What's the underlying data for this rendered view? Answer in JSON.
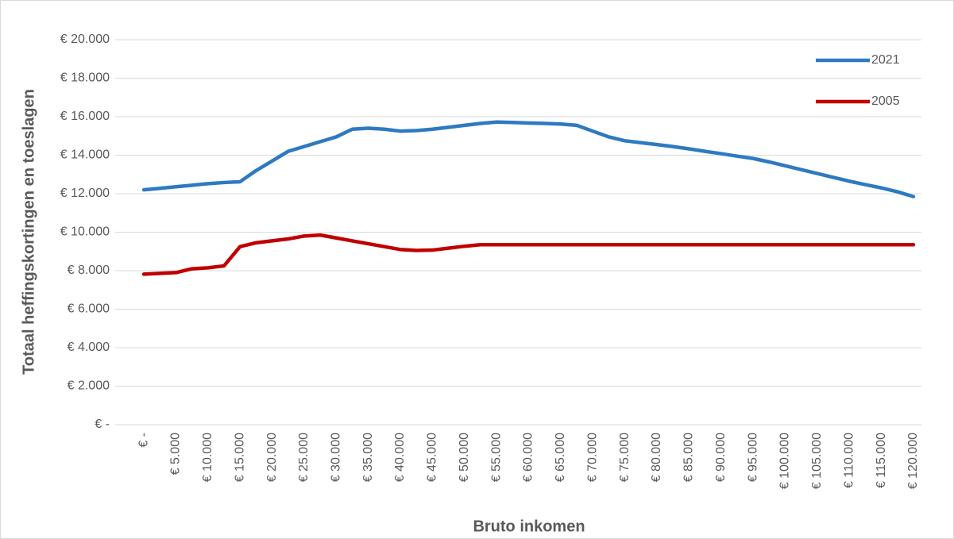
{
  "chart_data": {
    "type": "line",
    "y_label": "Totaal heffingskortingen en toeslagen",
    "x_label": "Bruto inkomen",
    "categories": [
      "€ -",
      null,
      "€ 5.000",
      null,
      "€ 10.000",
      null,
      "€ 15.000",
      null,
      "€ 20.000",
      null,
      "€ 25.000",
      null,
      "€ 30.000",
      null,
      "€ 35.000",
      null,
      "€ 40.000",
      null,
      "€ 45.000",
      null,
      "€ 50.000",
      null,
      "€ 55.000",
      null,
      "€ 60.000",
      null,
      "€ 65.000",
      null,
      "€ 70.000",
      null,
      "€ 75.000",
      null,
      "€ 80.000",
      null,
      "€ 85.000",
      null,
      "€ 90.000",
      null,
      "€ 95.000",
      null,
      "€ 100.000",
      null,
      "€ 105.000",
      null,
      "€ 110.000",
      null,
      "€ 115.000",
      null,
      "€ 120.000"
    ],
    "series": [
      {
        "name": "2021",
        "color": "#2e7ac1",
        "values": [
          12200,
          12280,
          12360,
          12440,
          12520,
          12580,
          12620,
          13200,
          13700,
          14200,
          14450,
          14700,
          14950,
          15350,
          15400,
          15350,
          15250,
          15280,
          15350,
          15450,
          15550,
          15650,
          15720,
          15700,
          15670,
          15650,
          15620,
          15550,
          15250,
          14950,
          14750,
          14650,
          14550,
          14450,
          14330,
          14200,
          14080,
          13950,
          13830,
          13650,
          13450,
          13250,
          13050,
          12850,
          12650,
          12470,
          12300,
          12100,
          11850
        ]
      },
      {
        "name": "2005",
        "color": "#c00000",
        "values": [
          7820,
          7860,
          7900,
          8100,
          8150,
          8250,
          9250,
          9450,
          9550,
          9650,
          9800,
          9850,
          9700,
          9550,
          9400,
          9250,
          9100,
          9050,
          9070,
          9170,
          9270,
          9350,
          9350,
          9350,
          9350,
          9350,
          9350,
          9350,
          9350,
          9350,
          9350,
          9350,
          9350,
          9350,
          9350,
          9350,
          9350,
          9350,
          9350,
          9350,
          9350,
          9350,
          9350,
          9350,
          9350,
          9350,
          9350,
          9350,
          9350
        ]
      }
    ],
    "ylim": [
      0,
      20000
    ],
    "yticks": [
      {
        "value": 0,
        "label": "€ -"
      },
      {
        "value": 2000,
        "label": "€ 2.000"
      },
      {
        "value": 4000,
        "label": "€ 4.000"
      },
      {
        "value": 6000,
        "label": "€ 6.000"
      },
      {
        "value": 8000,
        "label": "€ 8.000"
      },
      {
        "value": 10000,
        "label": "€ 10.000"
      },
      {
        "value": 12000,
        "label": "€ 12.000"
      },
      {
        "value": 14000,
        "label": "€ 14.000"
      },
      {
        "value": 16000,
        "label": "€ 16.000"
      },
      {
        "value": 18000,
        "label": "€ 18.000"
      },
      {
        "value": 20000,
        "label": "€ 20.000"
      }
    ],
    "grid": true,
    "legend": "top-right"
  }
}
